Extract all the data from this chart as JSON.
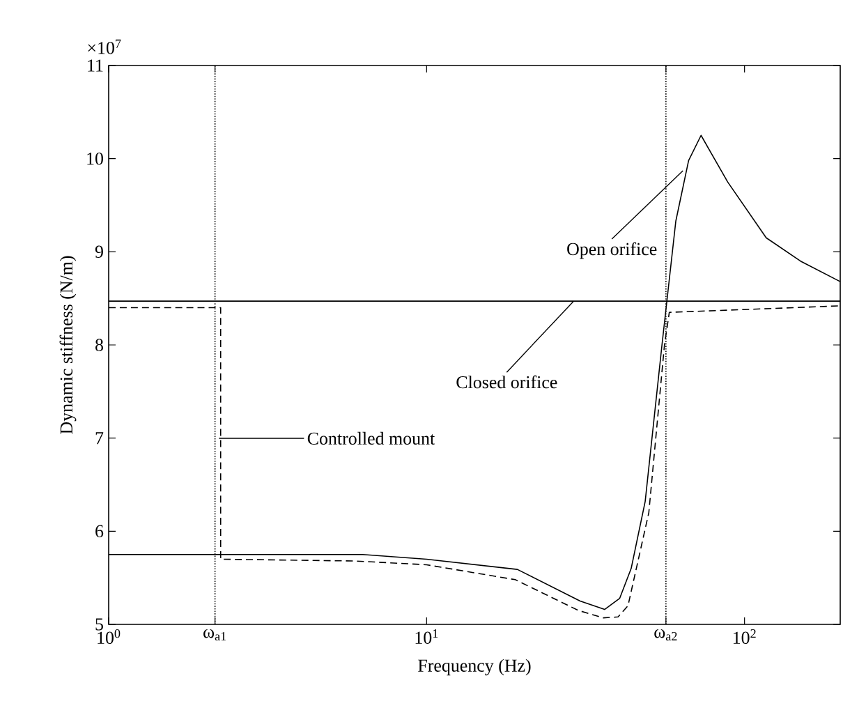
{
  "chart_data": {
    "type": "line",
    "xlabel": "Frequency (Hz)",
    "ylabel": "Dynamic stiffness (N/m)",
    "log": "x",
    "xlim": [
      1,
      200
    ],
    "ylim": [
      5,
      11
    ],
    "xticks": [
      {
        "value": 1,
        "label": "10$^{0}$"
      },
      {
        "value": 2.16,
        "label": "ω$_{a1}$"
      },
      {
        "value": 10,
        "label": "10$^{1}$"
      },
      {
        "value": 56.6,
        "label": "ω$_{a2}$"
      },
      {
        "value": 100,
        "label": "10$^{2}$"
      }
    ],
    "yticks": [
      5,
      6,
      7,
      8,
      9,
      10,
      11
    ],
    "grid": false,
    "series": [
      {
        "color": "#000000",
        "line_style": "solid",
        "x": [
          1,
          6.3,
          10,
          19.3,
          30.4,
          36.3,
          40.5,
          44,
          48.7,
          55,
          60.8,
          66.7,
          73,
          88.5,
          117,
          150,
          200
        ],
        "values": [
          5.75,
          5.75,
          5.7,
          5.59,
          5.25,
          5.16,
          5.28,
          5.6,
          6.32,
          8.0,
          9.33,
          9.98,
          10.25,
          9.75,
          9.15,
          8.9,
          8.68
        ]
      },
      {
        "color": "#000000",
        "line_style": "solid",
        "x": [
          1,
          200
        ],
        "values": [
          8.47,
          8.47
        ]
      },
      {
        "color": "#000000",
        "line_style": "dashed",
        "x": [
          1,
          2.25,
          2.25,
          6,
          10,
          19,
          30,
          36,
          40,
          43,
          50,
          56,
          58,
          100,
          200
        ],
        "values": [
          8.4,
          8.4,
          5.7,
          5.68,
          5.64,
          5.48,
          5.15,
          5.07,
          5.08,
          5.2,
          6.2,
          8.0,
          8.35,
          8.38,
          8.42
        ]
      }
    ],
    "ref_lines": [
      {
        "axis": "x",
        "value": 2.16,
        "line_style": "dotted"
      },
      {
        "axis": "x",
        "value": 56.6,
        "line_style": "dotted"
      }
    ],
    "annotations": [
      {
        "text": "Open orifice",
        "x": 64,
        "y": 9.87
      },
      {
        "text": "Closed orifice",
        "x": 29,
        "y": 8.47
      },
      "Controlled mount",
      "×10$^{7}$"
    ]
  }
}
